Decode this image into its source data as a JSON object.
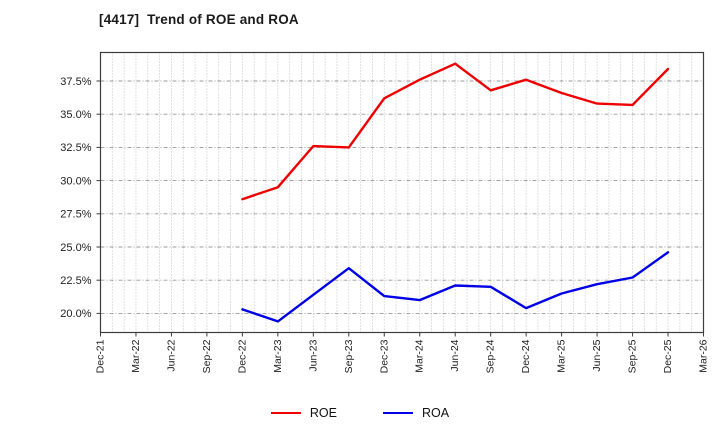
{
  "title": "[4417]  Trend of ROE and ROA",
  "chart_data": {
    "type": "line",
    "x_ticks": [
      "Dec-21",
      "Mar-22",
      "Jun-22",
      "Sep-22",
      "Dec-22",
      "Mar-23",
      "Jun-23",
      "Sep-23",
      "Dec-23",
      "Mar-24",
      "Jun-24",
      "Sep-24",
      "Dec-24",
      "Mar-25",
      "Jun-25",
      "Sep-25",
      "Dec-25",
      "Mar-26"
    ],
    "y_tick_labels": [
      "20.0%",
      "22.5%",
      "25.0%",
      "27.5%",
      "30.0%",
      "32.5%",
      "35.0%",
      "37.5%"
    ],
    "y_tick_values": [
      20.0,
      22.5,
      25.0,
      27.5,
      30.0,
      32.5,
      35.0,
      37.5
    ],
    "ylim": [
      18.6,
      39.7
    ],
    "grid": "dotted-gray, monthly vertical + 2.5% horizontal",
    "legend_position": "bottom-center",
    "categories": [
      "Dec-22",
      "Mar-23",
      "Jun-23",
      "Sep-23",
      "Dec-23",
      "Mar-24",
      "Jun-24",
      "Sep-24",
      "Dec-24",
      "Mar-25",
      "Jun-25",
      "Sep-25",
      "Dec-25"
    ],
    "series": [
      {
        "name": "ROE",
        "color": "#ee0000",
        "values": [
          28.6,
          29.5,
          32.6,
          32.5,
          36.2,
          37.6,
          38.8,
          36.8,
          37.6,
          36.6,
          35.8,
          35.7,
          38.4
        ]
      },
      {
        "name": "ROA",
        "color": "#0000e6",
        "values": [
          20.3,
          19.4,
          21.4,
          23.4,
          21.3,
          21.0,
          22.1,
          22.0,
          20.4,
          21.5,
          22.2,
          22.7,
          24.6
        ]
      }
    ]
  },
  "colors": {
    "roe_line": "#ee0000",
    "roa_line": "#0000e6",
    "grid": "#b3b3b3",
    "axis_border": "#3c3c3c",
    "tick_text": "#222222"
  }
}
